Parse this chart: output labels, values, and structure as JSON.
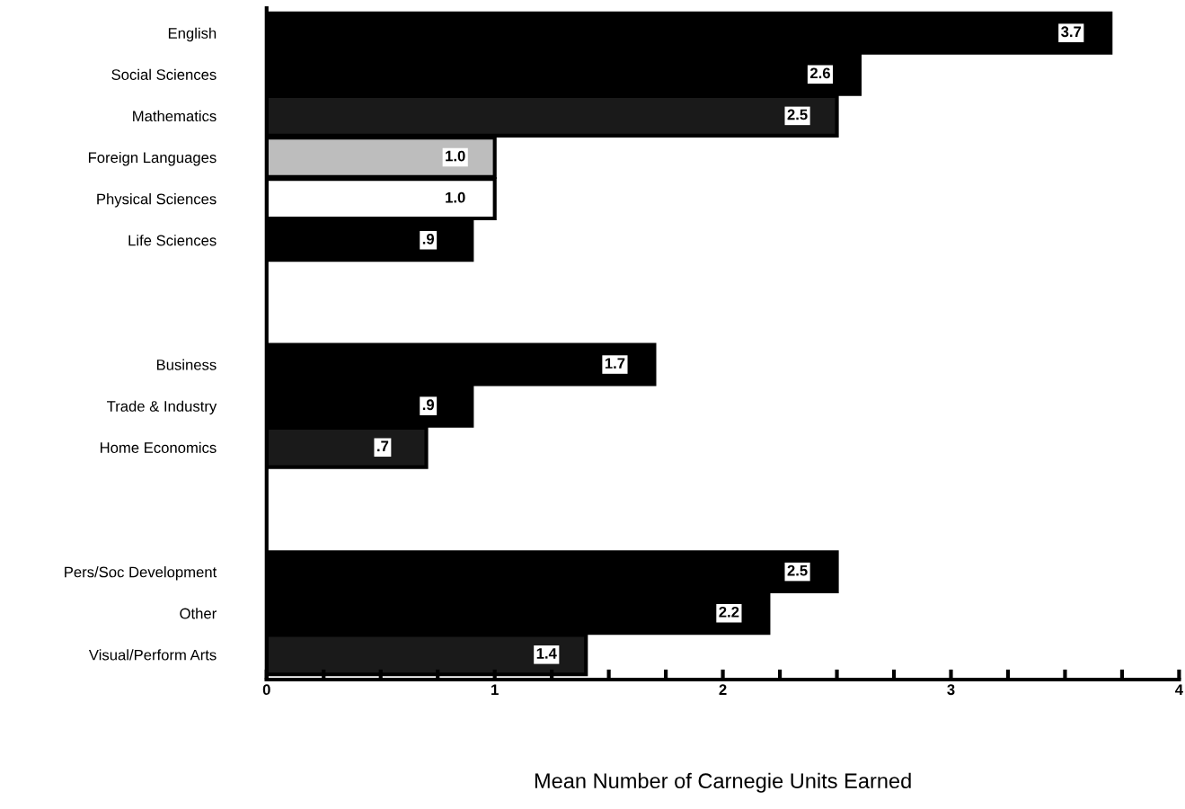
{
  "chart_data": {
    "type": "bar",
    "orientation": "horizontal",
    "xlabel": "Mean Number of Carnegie Units Earned",
    "categories": [
      "English",
      "Social Sciences",
      "Mathematics",
      "Foreign Languages",
      "Physical Sciences",
      "Life Sciences",
      null,
      null,
      "Business",
      "Trade & Industry",
      "Home Economics",
      null,
      null,
      "Pers/Soc Development",
      "Other",
      "Visual/Perform Arts"
    ],
    "values": [
      3.7,
      2.6,
      2.5,
      1.0,
      1.0,
      0.9,
      null,
      null,
      1.7,
      0.9,
      0.7,
      null,
      null,
      2.5,
      2.2,
      1.4
    ],
    "value_labels": [
      "3.7",
      "2.6",
      "2.5",
      "1.0",
      "1.0",
      ".9",
      null,
      null,
      "1.7",
      ".9",
      ".7",
      null,
      null,
      "2.5",
      "2.2",
      "1.4"
    ],
    "colors": [
      "#000000",
      "#000000",
      "#1a1a1a",
      "#bdbdbd",
      "#ffffff",
      "#000000",
      null,
      null,
      "#000000",
      "#000000",
      "#1a1a1a",
      null,
      null,
      "#000000",
      "#000000",
      "#1a1a1a"
    ],
    "xlim": [
      0,
      4
    ],
    "xticks": [
      0,
      {
        "value": 0.25,
        "label": null
      },
      {
        "value": 0.5,
        "label": null
      },
      {
        "value": 0.75,
        "label": null
      },
      1,
      {
        "value": 1.25,
        "label": null
      },
      {
        "value": 1.5,
        "label": null
      },
      {
        "value": 1.75,
        "label": null
      },
      2,
      {
        "value": 2.25,
        "label": null
      },
      {
        "value": 2.5,
        "label": null
      },
      {
        "value": 2.75,
        "label": null
      },
      3,
      {
        "value": 3.25,
        "label": null
      },
      {
        "value": 3.5,
        "label": null
      },
      {
        "value": 3.75,
        "label": null
      },
      4
    ],
    "grid": false,
    "legend": false
  }
}
